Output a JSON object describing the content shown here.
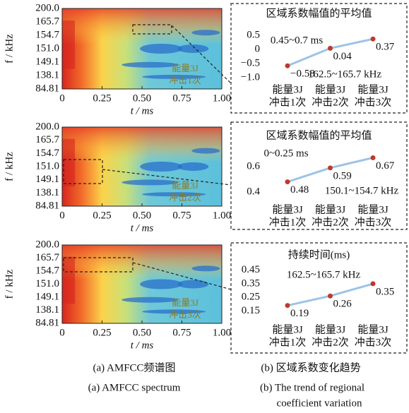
{
  "chart_data": [
    {
      "type": "heatmap",
      "ylabel": "f / kHz",
      "xlabel": "t / ms",
      "y_categories": [
        "84.81",
        "138.1",
        "149.1",
        "151.0",
        "154.7",
        "165.7",
        "200.0"
      ],
      "xlim": [
        0,
        1
      ],
      "xticks": [
        0,
        0.25,
        {
          "value": 0.5,
          "label": "0.50"
        },
        0.75,
        {
          "value": 1,
          "label": "1.00"
        }
      ],
      "annotation": [
        "能量3J",
        "冲击1次"
      ]
    },
    {
      "type": "line",
      "title": "区域系数幅值的平均值",
      "categories": [
        [
          "能量3J",
          "冲击1次"
        ],
        [
          "能量3J",
          "冲击2次"
        ],
        [
          "能量3J",
          "冲击3次"
        ]
      ],
      "series": [
        {
          "color": "#9dc3e6",
          "marker_color": "#c0392b",
          "values": [
            -0.58,
            0.04,
            0.37
          ],
          "value_labels": [
            "−0.58",
            "0.04",
            "0.37"
          ]
        }
      ],
      "ylim": [
        -1.05,
        0.8
      ],
      "yticks": [
        {
          "value": -1,
          "label": "−1.0"
        },
        {
          "value": -0.5,
          "label": "−0.5"
        },
        0,
        0.5
      ],
      "annotations": [
        "0.45~0.7 ms",
        "162.5~165.7 kHz"
      ]
    },
    {
      "type": "heatmap",
      "ylabel": "f / kHz",
      "xlabel": "t / ms",
      "y_categories": [
        "84.81",
        "138.1",
        "149.1",
        "151.0",
        "154.7",
        "165.7",
        "200.0"
      ],
      "xlim": [
        0,
        1
      ],
      "xticks": [
        0,
        0.25,
        {
          "value": 0.5,
          "label": "0.50"
        },
        0.75,
        {
          "value": 1,
          "label": "1.00"
        }
      ],
      "annotation": [
        "能量3J",
        "冲击2次"
      ]
    },
    {
      "type": "line",
      "title": "区域系数幅值的平均值",
      "categories": [
        [
          "能量3J",
          "冲击1次"
        ],
        [
          "能量3J",
          "冲击2次"
        ],
        [
          "能量3J",
          "冲击3次"
        ]
      ],
      "series": [
        {
          "color": "#9dc3e6",
          "marker_color": "#c0392b",
          "values": [
            0.48,
            0.59,
            0.67
          ]
        }
      ],
      "ylim": [
        0.355,
        0.745
      ],
      "yticks": [
        0.4,
        0.6
      ],
      "annotations": [
        "0~0.25 ms",
        "150.1~154.7 kHz"
      ]
    },
    {
      "type": "heatmap",
      "ylabel": "f / kHz",
      "xlabel": "t / ms",
      "y_categories": [
        "84.81",
        "138.1",
        "149.1",
        "151.0",
        "154.7",
        "165.7",
        "200.0"
      ],
      "xlim": [
        0,
        1
      ],
      "xticks": [
        0,
        0.25,
        {
          "value": 0.5,
          "label": "0.50"
        },
        0.75,
        {
          "value": 1,
          "label": "1.00"
        }
      ],
      "annotation": [
        "能量3J",
        "冲击3次"
      ]
    },
    {
      "type": "line",
      "title": "持续时间(ms)",
      "categories": [
        [
          "能量3J",
          "冲击1次"
        ],
        [
          "能量3J",
          "冲击2次"
        ],
        [
          "能量3J",
          "冲击3次"
        ]
      ],
      "series": [
        {
          "color": "#9dc3e6",
          "marker_color": "#c0392b",
          "values": [
            0.19,
            0.26,
            0.35
          ]
        }
      ],
      "ylim": [
        0.1,
        0.49
      ],
      "yticks": [
        0.15,
        0.25,
        0.35,
        0.45
      ],
      "annotations": [
        "162.5~165.7 kHz"
      ]
    }
  ],
  "captions": {
    "a_cn": "(a) AMFCC频谱图",
    "b_cn": "(b) 区域系数变化趋势",
    "a_en": "(a) AMFCC spectrum",
    "b_en_1": "(b) The trend of regional",
    "b_en_2": "coefficient variation"
  }
}
